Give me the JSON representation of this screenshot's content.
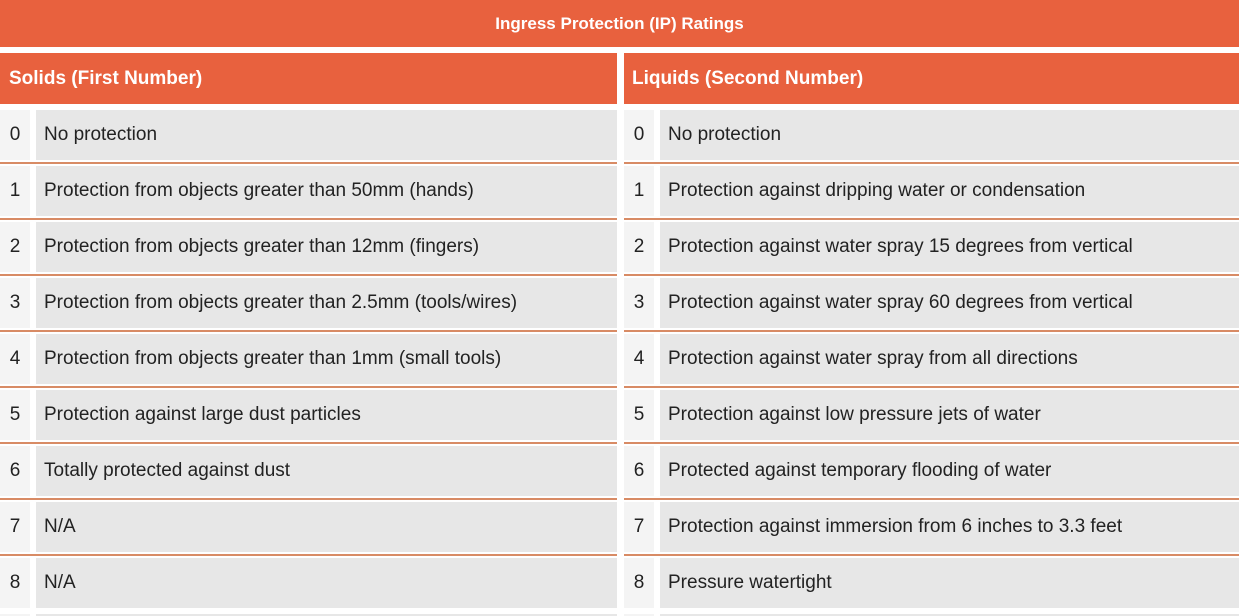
{
  "table": {
    "title": "Ingress Protection (IP) Ratings",
    "solids": {
      "header": "Solids (First Number)",
      "rows": [
        {
          "num": "0",
          "desc": "No protection"
        },
        {
          "num": "1",
          "desc": "Protection from objects greater than 50mm (hands)"
        },
        {
          "num": "2",
          "desc": "Protection from objects greater than 12mm (fingers)"
        },
        {
          "num": "3",
          "desc": "Protection from objects greater than 2.5mm (tools/wires)"
        },
        {
          "num": "4",
          "desc": "Protection from objects greater than 1mm (small tools)"
        },
        {
          "num": "5",
          "desc": "Protection against large dust particles"
        },
        {
          "num": "6",
          "desc": "Totally protected against dust"
        },
        {
          "num": "7",
          "desc": "N/A"
        },
        {
          "num": "8",
          "desc": "N/A"
        }
      ]
    },
    "liquids": {
      "header": "Liquids (Second Number)",
      "rows": [
        {
          "num": "0",
          "desc": "No protection"
        },
        {
          "num": "1",
          "desc": "Protection against dripping water or condensation"
        },
        {
          "num": "2",
          "desc": "Protection against water spray 15 degrees from vertical"
        },
        {
          "num": "3",
          "desc": "Protection against water spray 60 degrees from vertical"
        },
        {
          "num": "4",
          "desc": "Protection against water spray from all directions"
        },
        {
          "num": "5",
          "desc": "Protection against low pressure jets of water"
        },
        {
          "num": "6",
          "desc": "Protected against temporary flooding of water"
        },
        {
          "num": "7",
          "desc": "Protection against immersion from 6 inches to 3.3 feet"
        },
        {
          "num": "8",
          "desc": "Pressure watertight"
        }
      ]
    }
  },
  "colors": {
    "accent_orange": "#e8613e",
    "separator_salmon": "#d88b65",
    "row_background": "#e7e7e7",
    "number_cell_background": "#f4f4f4",
    "header_text": "#ffffff",
    "body_text": "#222222"
  }
}
